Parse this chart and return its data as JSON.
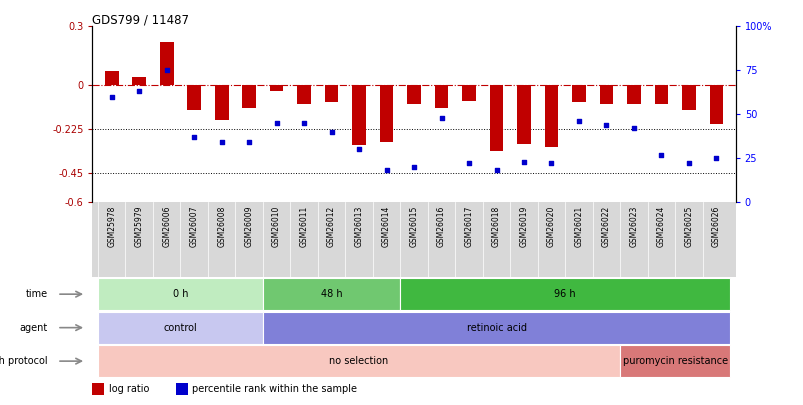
{
  "title": "GDS799 / 11487",
  "samples": [
    "GSM25978",
    "GSM25979",
    "GSM26006",
    "GSM26007",
    "GSM26008",
    "GSM26009",
    "GSM26010",
    "GSM26011",
    "GSM26012",
    "GSM26013",
    "GSM26014",
    "GSM26015",
    "GSM26016",
    "GSM26017",
    "GSM26018",
    "GSM26019",
    "GSM26020",
    "GSM26021",
    "GSM26022",
    "GSM26023",
    "GSM26024",
    "GSM26025",
    "GSM26026"
  ],
  "log_ratio": [
    0.07,
    0.04,
    0.22,
    -0.13,
    -0.18,
    -0.12,
    -0.03,
    -0.1,
    -0.09,
    -0.31,
    -0.29,
    -0.1,
    -0.12,
    -0.08,
    -0.34,
    -0.3,
    -0.32,
    -0.09,
    -0.1,
    -0.1,
    -0.1,
    -0.13,
    -0.2
  ],
  "percentile": [
    60,
    63,
    75,
    37,
    34,
    34,
    45,
    45,
    40,
    30,
    18,
    20,
    48,
    22,
    18,
    23,
    22,
    46,
    44,
    42,
    27,
    22,
    25
  ],
  "ylim_left": [
    -0.6,
    0.3
  ],
  "ylim_right": [
    0,
    100
  ],
  "yticks_left": [
    -0.6,
    -0.45,
    -0.225,
    0,
    0.3
  ],
  "yticks_right": [
    0,
    25,
    50,
    75,
    100
  ],
  "ytick_labels_left": [
    "-0.6",
    "-0.45",
    "-0.225",
    "0",
    "0.3"
  ],
  "ytick_labels_right": [
    "0",
    "25",
    "50",
    "75",
    "100%"
  ],
  "hlines": [
    -0.45,
    -0.225
  ],
  "bar_color": "#c00000",
  "dot_color": "#0000cc",
  "xticklabel_bg": "#d8d8d8",
  "time_groups": [
    {
      "label": "0 h",
      "start": 0,
      "end": 5,
      "color": "#c0ecc0"
    },
    {
      "label": "48 h",
      "start": 6,
      "end": 10,
      "color": "#70c870"
    },
    {
      "label": "96 h",
      "start": 11,
      "end": 22,
      "color": "#40b840"
    }
  ],
  "agent_groups": [
    {
      "label": "control",
      "start": 0,
      "end": 5,
      "color": "#c8c8f0"
    },
    {
      "label": "retinoic acid",
      "start": 6,
      "end": 22,
      "color": "#8080d8"
    }
  ],
  "growth_groups": [
    {
      "label": "no selection",
      "start": 0,
      "end": 18,
      "color": "#f8c8c0"
    },
    {
      "label": "puromycin resistance",
      "start": 19,
      "end": 22,
      "color": "#d87878"
    }
  ],
  "row_labels": [
    "time",
    "agent",
    "growth protocol"
  ]
}
